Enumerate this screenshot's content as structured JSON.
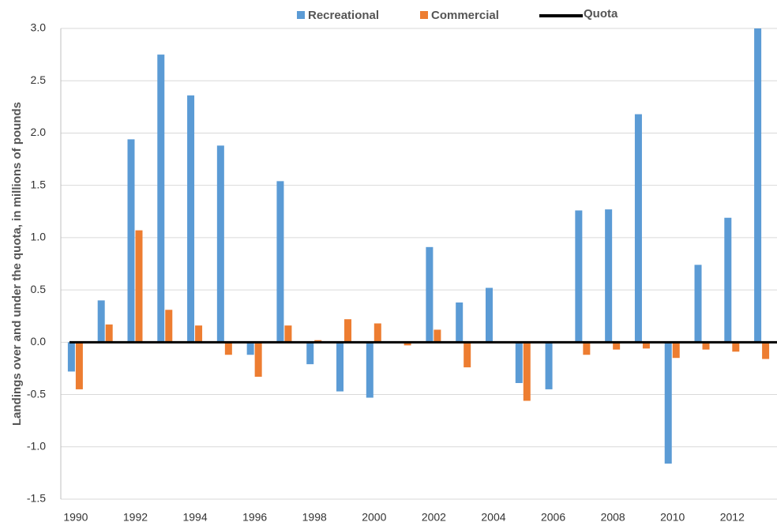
{
  "chart_data": {
    "type": "bar",
    "y_label": "Landings over and under the quota, in millions of pounds",
    "categories": [
      "1990",
      null,
      "1992",
      null,
      "1994",
      null,
      "1996",
      null,
      "1998",
      null,
      "2000",
      null,
      "2002",
      null,
      "2004",
      null,
      "2006",
      null,
      "2008",
      null,
      "2010",
      null,
      "2012",
      null
    ],
    "series": [
      {
        "name": "Recreational",
        "color": "#5b9bd5",
        "values": [
          -0.28,
          0.4,
          1.94,
          2.75,
          2.36,
          1.88,
          -0.12,
          1.54,
          -0.21,
          -0.47,
          -0.53,
          0.0,
          0.91,
          0.38,
          0.52,
          -0.39,
          -0.45,
          1.26,
          1.27,
          2.18,
          -1.16,
          0.74,
          1.19,
          3.0
        ]
      },
      {
        "name": "Commercial",
        "color": "#ed7d31",
        "values": [
          -0.45,
          0.17,
          1.07,
          0.31,
          0.16,
          -0.12,
          -0.33,
          0.16,
          0.02,
          0.22,
          0.18,
          -0.03,
          0.12,
          -0.24,
          0.0,
          -0.56,
          0.0,
          -0.12,
          -0.07,
          -0.06,
          -0.15,
          -0.07,
          -0.09,
          -0.16
        ]
      }
    ],
    "quota": {
      "name": "Quota",
      "color": "#000000",
      "value": 0
    },
    "ylim": [
      -1.5,
      3.0
    ],
    "yticks": [
      {
        "value": -1.5,
        "label": "-1.5"
      },
      {
        "value": -1,
        "label": "-1.0"
      },
      -0.5,
      {
        "value": 0,
        "label": "0.0"
      },
      0.5,
      {
        "value": 1,
        "label": "1.0"
      },
      1.5,
      {
        "value": 2,
        "label": "2.0"
      },
      2.5,
      {
        "value": 3,
        "label": "3.0"
      }
    ],
    "grid": true
  }
}
